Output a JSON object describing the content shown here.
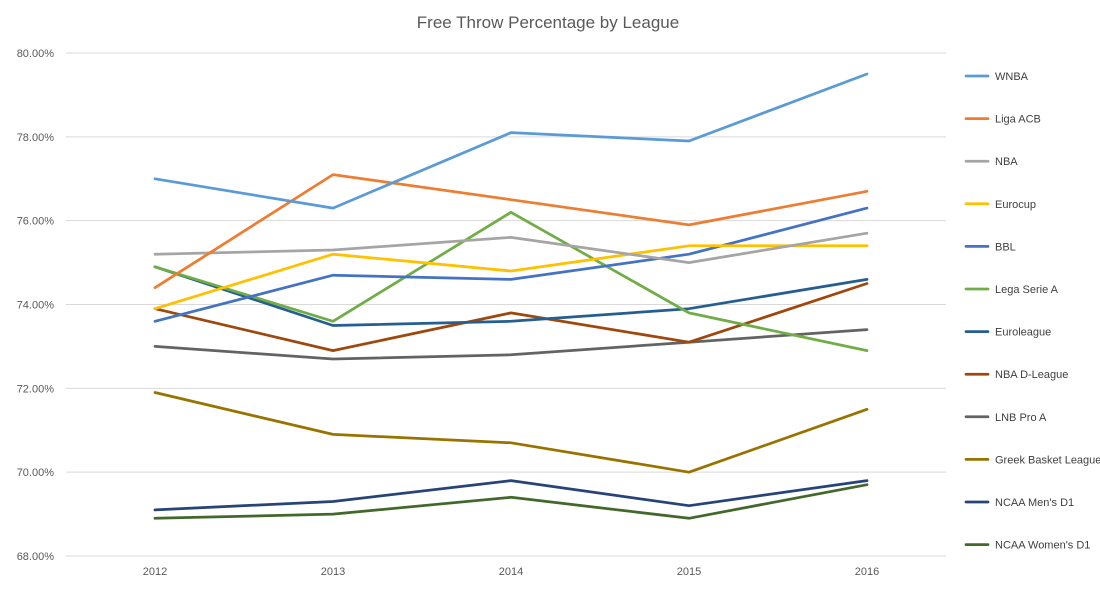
{
  "chart_data": {
    "type": "line",
    "title": "Free Throw Percentage by League",
    "xlabel": "",
    "ylabel": "",
    "categories": [
      "2012",
      "2013",
      "2014",
      "2015",
      "2016"
    ],
    "ylim": [
      68,
      80
    ],
    "yticks": [
      80,
      78,
      76,
      74,
      72,
      70,
      68
    ],
    "ytick_labels": [
      "80.00%",
      "78.00%",
      "76.00%",
      "74.00%",
      "72.00%",
      "70.00%",
      "68.00%"
    ],
    "grid": true,
    "legend_position": "right",
    "series": [
      {
        "name": "WNBA",
        "color": "#5B9BD5",
        "values": [
          77.0,
          76.3,
          78.1,
          77.9,
          79.5
        ]
      },
      {
        "name": "Liga ACB",
        "color": "#ED7D31",
        "values": [
          74.4,
          77.1,
          76.5,
          75.9,
          76.7
        ]
      },
      {
        "name": "NBA",
        "color": "#A5A5A5",
        "values": [
          75.2,
          75.3,
          75.6,
          75.0,
          75.7
        ]
      },
      {
        "name": "Eurocup",
        "color": "#FFC000",
        "values": [
          73.9,
          75.2,
          74.8,
          75.4,
          75.4
        ]
      },
      {
        "name": "BBL",
        "color": "#4472C4",
        "values": [
          73.6,
          74.7,
          74.6,
          75.2,
          76.3
        ]
      },
      {
        "name": "Lega Serie A",
        "color": "#70AD47",
        "values": [
          74.9,
          73.6,
          76.2,
          73.8,
          72.9
        ]
      },
      {
        "name": "Euroleague",
        "color": "#255E91",
        "values": [
          74.9,
          73.5,
          73.6,
          73.9,
          74.6
        ]
      },
      {
        "name": "NBA D-League",
        "color": "#9E480E",
        "values": [
          73.9,
          72.9,
          73.8,
          73.1,
          74.5
        ]
      },
      {
        "name": "LNB Pro A",
        "color": "#636363",
        "values": [
          73.0,
          72.7,
          72.8,
          73.1,
          73.4
        ]
      },
      {
        "name": "Greek Basket League",
        "color": "#997300",
        "values": [
          71.9,
          70.9,
          70.7,
          70.0,
          71.5
        ]
      },
      {
        "name": "NCAA Men's D1",
        "color": "#264478",
        "values": [
          69.1,
          69.3,
          69.8,
          69.2,
          69.8
        ]
      },
      {
        "name": "NCAA Women's D1",
        "color": "#43682B",
        "values": [
          68.9,
          69.0,
          69.4,
          68.9,
          69.7
        ]
      }
    ]
  }
}
